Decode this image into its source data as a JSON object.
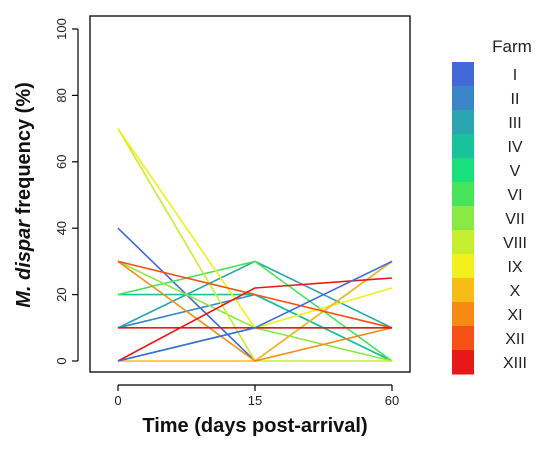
{
  "chart_data": {
    "type": "line",
    "title": "",
    "xlabel": "Time (days post-arrival)",
    "ylabel_italic": "M. dispar",
    "ylabel_rest": " frequency (%)",
    "x": [
      0,
      15,
      60
    ],
    "x_tick_labels": [
      "0",
      "15",
      "60"
    ],
    "y_ticks": [
      0,
      20,
      40,
      60,
      80,
      100
    ],
    "y_tick_labels": [
      "0",
      "20",
      "40",
      "60",
      "80",
      "100"
    ],
    "ylim": [
      0,
      100
    ],
    "grid": false,
    "legend_title": "Farm",
    "legend_position": "right",
    "series": [
      {
        "name": "I",
        "color": "#4169d8",
        "values": [
          40,
          0,
          30
        ]
      },
      {
        "name": "II",
        "color": "#3a86c8",
        "values": [
          10,
          20,
          0
        ]
      },
      {
        "name": "III",
        "color": "#2aa6b0",
        "values": [
          10,
          30,
          10
        ]
      },
      {
        "name": "IV",
        "color": "#18c29a",
        "values": [
          20,
          20,
          0
        ]
      },
      {
        "name": "V",
        "color": "#18e07a",
        "values": [
          0,
          10,
          10
        ]
      },
      {
        "name": "VI",
        "color": "#46e45a",
        "values": [
          20,
          30,
          0
        ]
      },
      {
        "name": "VII",
        "color": "#8aea44",
        "values": [
          30,
          10,
          0
        ]
      },
      {
        "name": "VIII",
        "color": "#c7ee2e",
        "values": [
          70,
          0,
          0
        ]
      },
      {
        "name": "IX",
        "color": "#f3ef1a",
        "values": [
          70,
          10,
          22
        ]
      },
      {
        "name": "X",
        "color": "#f7bd16",
        "values": [
          0,
          0,
          30
        ]
      },
      {
        "name": "XI",
        "color": "#f78a12",
        "values": [
          30,
          0,
          10
        ]
      },
      {
        "name": "XII",
        "color": "#f75014",
        "values": [
          30,
          20,
          10
        ]
      },
      {
        "name": "XIII",
        "color": "#e81818",
        "values": [
          0,
          22,
          25
        ]
      }
    ],
    "extra_lines": [
      {
        "color": "#e81818",
        "values": [
          10,
          10,
          10
        ]
      },
      {
        "color": "#4169d8",
        "values": [
          0,
          10,
          30
        ]
      }
    ]
  }
}
